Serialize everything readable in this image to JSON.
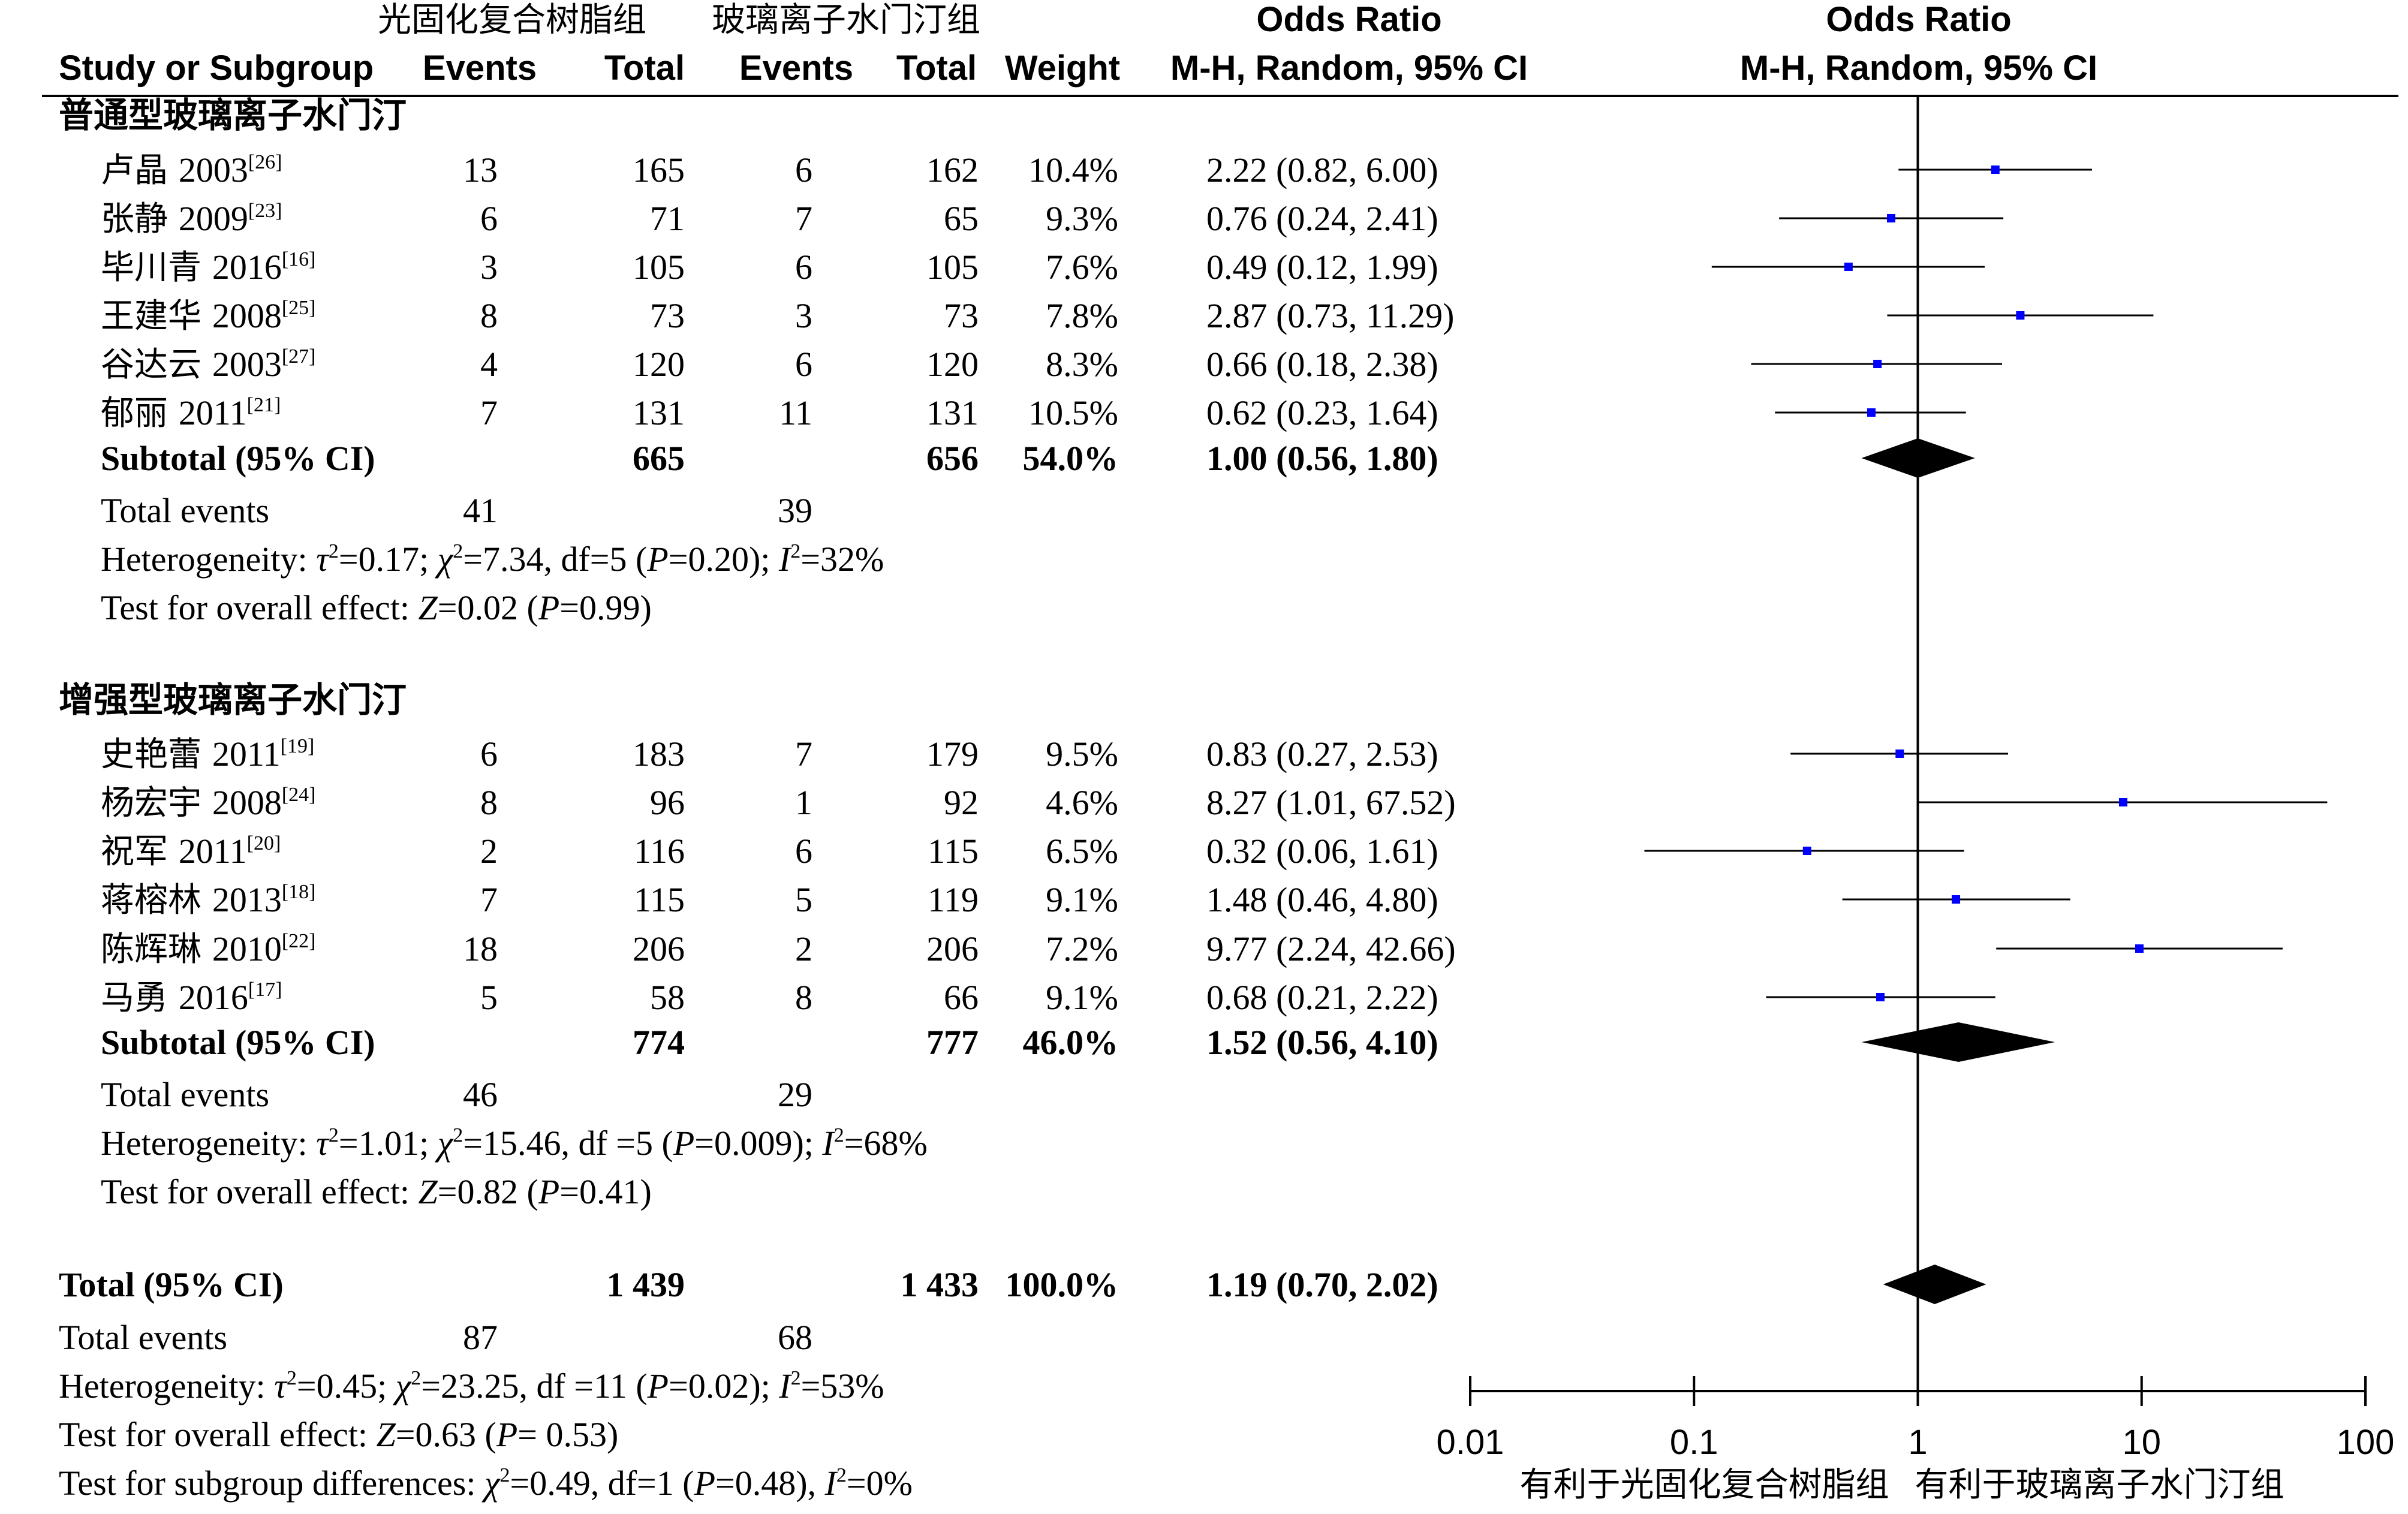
{
  "header": {
    "group1_label": "光固化复合树脂组",
    "group2_label": "玻璃离子水门汀组",
    "col_study": "Study or Subgroup",
    "col_events1": "Events",
    "col_total1": "Total",
    "col_events2": "Events",
    "col_total2": "Total",
    "col_weight": "Weight",
    "or_title": "Odds Ratio",
    "or_method": "M-H, Random, 95% CI",
    "plot_title": "Odds Ratio",
    "plot_method": "M-H, Random, 95% CI"
  },
  "chart_data": {
    "type": "forest",
    "scale": "log",
    "null_line": 1,
    "xlim": [
      0.01,
      100
    ],
    "x_ticks": [
      "0.01",
      "0.1",
      "1",
      "10",
      "100"
    ],
    "axis_left_label": "有利于光固化复合树脂组",
    "axis_right_label": "有利于玻璃离子水门汀组",
    "marker_color": "#0000ff",
    "subgroups": [
      {
        "title": "普通型玻璃离子水门汀",
        "studies": [
          {
            "name": "卢晶 2003",
            "ref": "[26]",
            "e1": "13",
            "t1": "165",
            "e2": "6",
            "t2": "162",
            "weight": "10.4%",
            "ci_text": "2.22 (0.82, 6.00)",
            "or": 2.22,
            "lo": 0.82,
            "hi": 6.0
          },
          {
            "name": "张静 2009",
            "ref": "[23]",
            "e1": "6",
            "t1": "71",
            "e2": "7",
            "t2": "65",
            "weight": "9.3%",
            "ci_text": "0.76 (0.24, 2.41)",
            "or": 0.76,
            "lo": 0.24,
            "hi": 2.41
          },
          {
            "name": "毕川青 2016",
            "ref": "[16]",
            "e1": "3",
            "t1": "105",
            "e2": "6",
            "t2": "105",
            "weight": "7.6%",
            "ci_text": "0.49 (0.12, 1.99)",
            "or": 0.49,
            "lo": 0.12,
            "hi": 1.99
          },
          {
            "name": "王建华 2008",
            "ref": "[25]",
            "e1": "8",
            "t1": "73",
            "e2": "3",
            "t2": "73",
            "weight": "7.8%",
            "ci_text": "2.87 (0.73, 11.29)",
            "or": 2.87,
            "lo": 0.73,
            "hi": 11.29
          },
          {
            "name": "谷达云 2003",
            "ref": "[27]",
            "e1": "4",
            "t1": "120",
            "e2": "6",
            "t2": "120",
            "weight": "8.3%",
            "ci_text": "0.66 (0.18, 2.38)",
            "or": 0.66,
            "lo": 0.18,
            "hi": 2.38
          },
          {
            "name": "郁丽 2011",
            "ref": "[21]",
            "e1": "7",
            "t1": "131",
            "e2": "11",
            "t2": "131",
            "weight": "10.5%",
            "ci_text": "0.62 (0.23, 1.64)",
            "or": 0.62,
            "lo": 0.23,
            "hi": 1.64
          }
        ],
        "subtotal": {
          "label": "Subtotal (95% CI)",
          "t1": "665",
          "t2": "656",
          "weight": "54.0%",
          "ci_text": "1.00 (0.56, 1.80)",
          "or": 1.0,
          "lo": 0.56,
          "hi": 1.8
        },
        "total_events": {
          "label": "Total events",
          "e1": "41",
          "e2": "39"
        },
        "heterogeneity": {
          "prefix": "Heterogeneity: ",
          "tau2": "=0.17; ",
          "chi2": "=7.34, df=5 (",
          "p": "=0.20); ",
          "i2": "=32%"
        },
        "overall": {
          "prefix": "Test for overall effect: ",
          "z": "=0.02 (",
          "p": "=0.99)"
        }
      },
      {
        "title": "增强型玻璃离子水门汀",
        "studies": [
          {
            "name": "史艳蕾 2011",
            "ref": "[19]",
            "e1": "6",
            "t1": "183",
            "e2": "7",
            "t2": "179",
            "weight": "9.5%",
            "ci_text": "0.83 (0.27, 2.53)",
            "or": 0.83,
            "lo": 0.27,
            "hi": 2.53
          },
          {
            "name": "杨宏宇 2008",
            "ref": "[24]",
            "e1": "8",
            "t1": "96",
            "e2": "1",
            "t2": "92",
            "weight": "4.6%",
            "ci_text": "8.27 (1.01, 67.52)",
            "or": 8.27,
            "lo": 1.01,
            "hi": 67.52
          },
          {
            "name": "祝军 2011",
            "ref": "[20]",
            "e1": "2",
            "t1": "116",
            "e2": "6",
            "t2": "115",
            "weight": "6.5%",
            "ci_text": "0.32 (0.06, 1.61)",
            "or": 0.32,
            "lo": 0.06,
            "hi": 1.61
          },
          {
            "name": "蒋榕林 2013",
            "ref": "[18]",
            "e1": "7",
            "t1": "115",
            "e2": "5",
            "t2": "119",
            "weight": "9.1%",
            "ci_text": "1.48 (0.46, 4.80)",
            "or": 1.48,
            "lo": 0.46,
            "hi": 4.8
          },
          {
            "name": "陈辉琳 2010",
            "ref": "[22]",
            "e1": "18",
            "t1": "206",
            "e2": "2",
            "t2": "206",
            "weight": "7.2%",
            "ci_text": "9.77 (2.24, 42.66)",
            "or": 9.77,
            "lo": 2.24,
            "hi": 42.66
          },
          {
            "name": "马勇 2016",
            "ref": "[17]",
            "e1": "5",
            "t1": "58",
            "e2": "8",
            "t2": "66",
            "weight": "9.1%",
            "ci_text": "0.68 (0.21, 2.22)",
            "or": 0.68,
            "lo": 0.21,
            "hi": 2.22
          }
        ],
        "subtotal": {
          "label": "Subtotal (95% CI)",
          "t1": "774",
          "t2": "777",
          "weight": "46.0%",
          "ci_text": "1.52 (0.56, 4.10)",
          "or": 1.52,
          "lo": 0.56,
          "hi": 4.1
        },
        "total_events": {
          "label": "Total events",
          "e1": "46",
          "e2": "29"
        },
        "heterogeneity": {
          "prefix": "Heterogeneity: ",
          "tau2": "=1.01; ",
          "chi2": "=15.46, df =5 (",
          "p": "=0.009); ",
          "i2": "=68%"
        },
        "overall": {
          "prefix": "Test for overall effect: ",
          "z": "=0.82 (",
          "p": "=0.41)"
        }
      }
    ],
    "total": {
      "label": "Total (95% CI)",
      "t1": "1 439",
      "t2": "1 433",
      "weight": "100.0%",
      "ci_text": "1.19 (0.70, 2.02)",
      "or": 1.19,
      "lo": 0.7,
      "hi": 2.02,
      "total_events": {
        "label": "Total events",
        "e1": "87",
        "e2": "68"
      },
      "heterogeneity": {
        "prefix": "Heterogeneity: ",
        "tau2": "=0.45; ",
        "chi2": "=23.25, df =11 (",
        "p": "=0.02); ",
        "i2": "=53%"
      },
      "overall": {
        "prefix": "Test for overall effect: ",
        "z": "=0.63 (",
        "p": "= 0.53)"
      },
      "subgroup_diff": {
        "prefix": "Test for subgroup differences: ",
        "chi2": "=0.49, df=1 (",
        "p": "=0.48), ",
        "i2": "=0%"
      }
    }
  }
}
